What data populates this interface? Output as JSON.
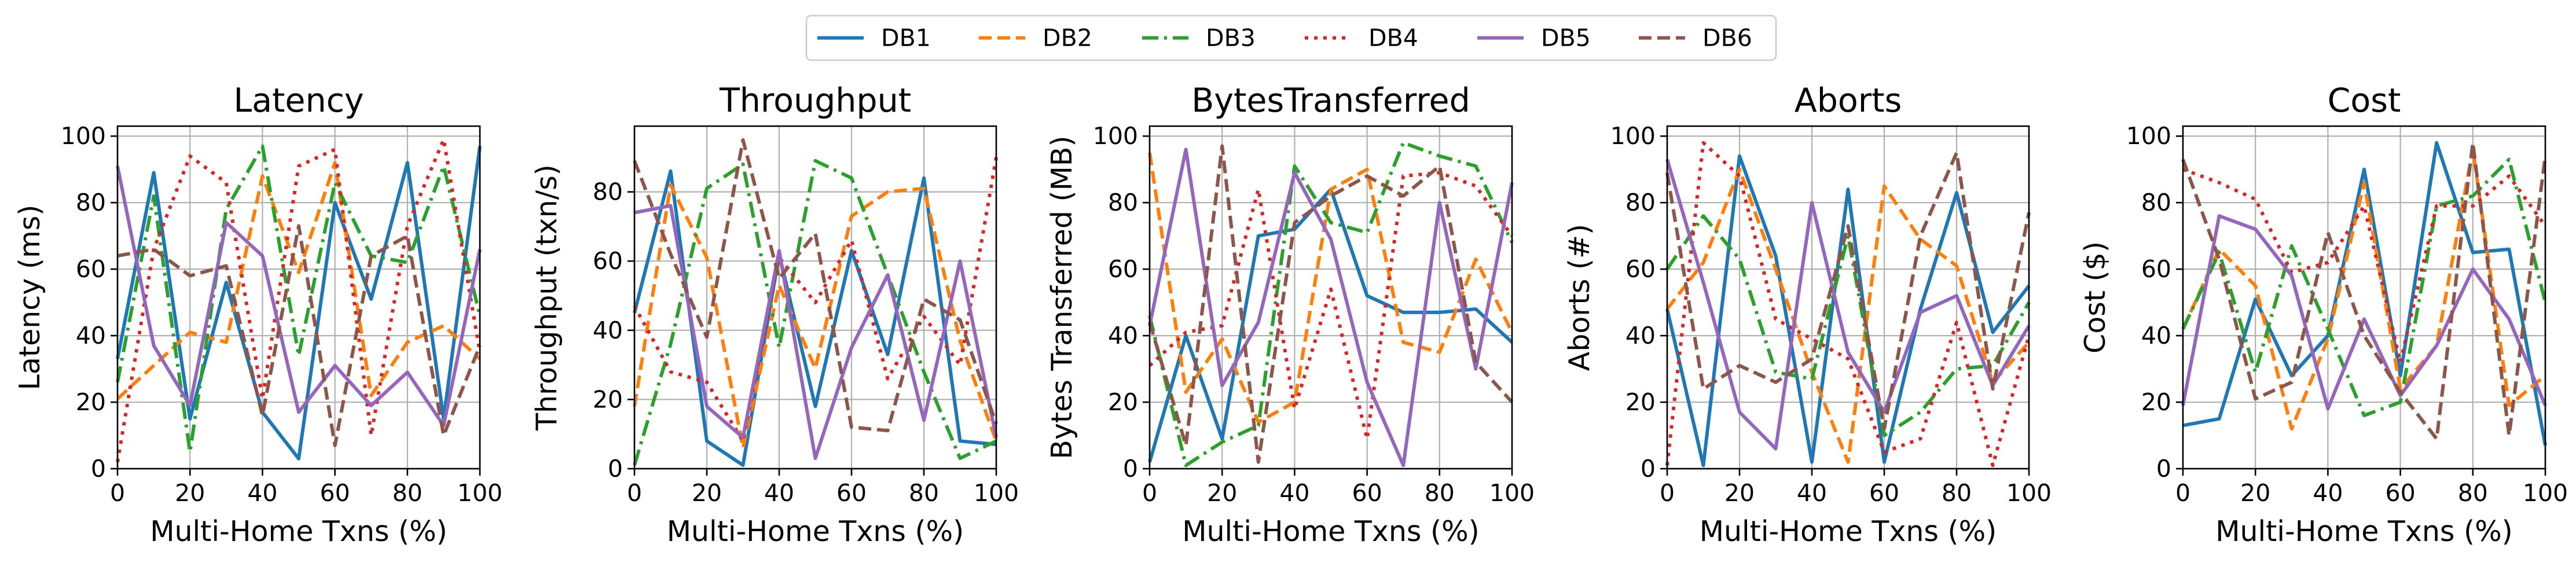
{
  "legend": {
    "entries": [
      {
        "name": "DB1",
        "color": "#1f77b4",
        "dash": "solid"
      },
      {
        "name": "DB2",
        "color": "#ff7f0e",
        "dash": "dashed"
      },
      {
        "name": "DB3",
        "color": "#2ca02c",
        "dash": "dashdot"
      },
      {
        "name": "DB4",
        "color": "#d62728",
        "dash": "dotted"
      },
      {
        "name": "DB5",
        "color": "#9467bd",
        "dash": "solid"
      },
      {
        "name": "DB6",
        "color": "#8c564b",
        "dash": "dashed"
      }
    ],
    "placement": "top-center"
  },
  "chart_data": [
    {
      "type": "line",
      "title": "Latency",
      "xlabel": "Multi-Home Txns (%)",
      "ylabel": "Latency (ms)",
      "x": [
        0,
        10,
        20,
        30,
        40,
        50,
        60,
        70,
        80,
        90,
        100
      ],
      "xlim": [
        0,
        100
      ],
      "ylim": [
        0,
        103
      ],
      "xticks": [
        0,
        20,
        40,
        60,
        80,
        100
      ],
      "yticks": [
        0,
        20,
        40,
        60,
        80,
        100
      ],
      "grid": true,
      "series": [
        {
          "name": "DB1",
          "values": [
            33,
            89,
            15,
            56,
            17,
            3,
            80,
            51,
            92,
            15,
            97
          ]
        },
        {
          "name": "DB2",
          "values": [
            21,
            31,
            41,
            38,
            88,
            59,
            92,
            22,
            38,
            43,
            33
          ]
        },
        {
          "name": "DB3",
          "values": [
            26,
            82,
            5,
            78,
            97,
            34,
            86,
            64,
            62,
            91,
            46
          ]
        },
        {
          "name": "DB4",
          "values": [
            2,
            66,
            94,
            86,
            21,
            91,
            96,
            10,
            73,
            99,
            35
          ]
        },
        {
          "name": "DB5",
          "values": [
            91,
            37,
            19,
            74,
            64,
            17,
            31,
            19,
            29,
            13,
            66
          ]
        },
        {
          "name": "DB6",
          "values": [
            64,
            66,
            58,
            61,
            16,
            73,
            7,
            64,
            70,
            10,
            37
          ]
        }
      ]
    },
    {
      "type": "line",
      "title": "Throughput",
      "xlabel": "Multi-Home Txns (%)",
      "ylabel": "Throughput (txn/s)",
      "x": [
        0,
        10,
        20,
        30,
        40,
        50,
        60,
        70,
        80,
        90,
        100
      ],
      "xlim": [
        0,
        100
      ],
      "ylim": [
        0,
        99
      ],
      "xticks": [
        0,
        20,
        40,
        60,
        80,
        100
      ],
      "yticks": [
        0,
        20,
        40,
        60,
        80
      ],
      "grid": true,
      "series": [
        {
          "name": "DB1",
          "values": [
            45,
            86,
            8,
            1,
            62,
            18,
            63,
            33,
            84,
            8,
            7
          ]
        },
        {
          "name": "DB2",
          "values": [
            18,
            82,
            61,
            6,
            53,
            29,
            73,
            80,
            81,
            37,
            8
          ]
        },
        {
          "name": "DB3",
          "values": [
            1,
            36,
            81,
            88,
            35,
            89,
            84,
            56,
            28,
            3,
            8
          ]
        },
        {
          "name": "DB4",
          "values": [
            47,
            28,
            25,
            8,
            61,
            48,
            66,
            26,
            44,
            30,
            90
          ]
        },
        {
          "name": "DB5",
          "values": [
            74,
            76,
            18,
            9,
            63,
            3,
            35,
            56,
            14,
            60,
            9
          ]
        },
        {
          "name": "DB6",
          "values": [
            89,
            62,
            38,
            95,
            55,
            68,
            12,
            11,
            49,
            43,
            13
          ]
        }
      ]
    },
    {
      "type": "line",
      "title": "BytesTransferred",
      "xlabel": "Multi-Home Txns (%)",
      "ylabel": "Bytes Transferred (MB)",
      "x": [
        0,
        10,
        20,
        30,
        40,
        50,
        60,
        70,
        80,
        90,
        100
      ],
      "xlim": [
        0,
        100
      ],
      "ylim": [
        0,
        103
      ],
      "xticks": [
        0,
        20,
        40,
        60,
        80,
        100
      ],
      "yticks": [
        0,
        20,
        40,
        60,
        80,
        100
      ],
      "grid": true,
      "series": [
        {
          "name": "DB1",
          "values": [
            2,
            40,
            9,
            70,
            72,
            84,
            52,
            47,
            47,
            48,
            38
          ]
        },
        {
          "name": "DB2",
          "values": [
            95,
            23,
            39,
            14,
            20,
            84,
            90,
            38,
            35,
            63,
            41
          ]
        },
        {
          "name": "DB3",
          "values": [
            46,
            1,
            8,
            13,
            91,
            74,
            71,
            98,
            94,
            91,
            68
          ]
        },
        {
          "name": "DB4",
          "values": [
            31,
            41,
            43,
            84,
            18,
            54,
            9,
            88,
            89,
            85,
            70
          ]
        },
        {
          "name": "DB5",
          "values": [
            43,
            96,
            25,
            44,
            89,
            69,
            26,
            1,
            80,
            30,
            86
          ]
        },
        {
          "name": "DB6",
          "values": [
            44,
            7,
            97,
            2,
            74,
            82,
            88,
            82,
            91,
            32,
            20
          ]
        }
      ]
    },
    {
      "type": "line",
      "title": "Aborts",
      "xlabel": "Multi-Home Txns (%)",
      "ylabel": "Aborts (#)",
      "x": [
        0,
        10,
        20,
        30,
        40,
        50,
        60,
        70,
        80,
        90,
        100
      ],
      "xlim": [
        0,
        100
      ],
      "ylim": [
        0,
        103
      ],
      "xticks": [
        0,
        20,
        40,
        60,
        80,
        100
      ],
      "yticks": [
        0,
        20,
        40,
        60,
        80,
        100
      ],
      "grid": true,
      "series": [
        {
          "name": "DB1",
          "values": [
            48,
            1,
            94,
            64,
            2,
            84,
            2,
            48,
            83,
            41,
            55
          ]
        },
        {
          "name": "DB2",
          "values": [
            48,
            62,
            90,
            60,
            29,
            2,
            85,
            69,
            61,
            26,
            38
          ]
        },
        {
          "name": "DB3",
          "values": [
            60,
            76,
            63,
            29,
            27,
            70,
            10,
            17,
            30,
            31,
            50
          ]
        },
        {
          "name": "DB4",
          "values": [
            1,
            98,
            88,
            45,
            39,
            33,
            5,
            9,
            44,
            1,
            40
          ]
        },
        {
          "name": "DB5",
          "values": [
            93,
            56,
            17,
            6,
            80,
            35,
            17,
            47,
            52,
            25,
            43
          ]
        },
        {
          "name": "DB6",
          "values": [
            89,
            24,
            31,
            26,
            33,
            73,
            12,
            70,
            95,
            24,
            77
          ]
        }
      ]
    },
    {
      "type": "line",
      "title": "Cost",
      "xlabel": "Multi-Home Txns (%)",
      "ylabel": "Cost ($)",
      "x": [
        0,
        10,
        20,
        30,
        40,
        50,
        60,
        70,
        80,
        90,
        100
      ],
      "xlim": [
        0,
        100
      ],
      "ylim": [
        0,
        103
      ],
      "xticks": [
        0,
        20,
        40,
        60,
        80,
        100
      ],
      "yticks": [
        0,
        20,
        40,
        60,
        80,
        100
      ],
      "grid": true,
      "series": [
        {
          "name": "DB1",
          "values": [
            13,
            15,
            51,
            28,
            40,
            90,
            28,
            98,
            65,
            66,
            7
          ]
        },
        {
          "name": "DB2",
          "values": [
            42,
            66,
            55,
            12,
            39,
            86,
            24,
            37,
            96,
            19,
            28
          ]
        },
        {
          "name": "DB3",
          "values": [
            42,
            65,
            29,
            67,
            42,
            16,
            20,
            79,
            82,
            93,
            50
          ]
        },
        {
          "name": "DB4",
          "values": [
            90,
            86,
            81,
            59,
            62,
            79,
            32,
            79,
            79,
            88,
            73
          ]
        },
        {
          "name": "DB5",
          "values": [
            19,
            76,
            72,
            58,
            18,
            45,
            22,
            37,
            60,
            45,
            19
          ]
        },
        {
          "name": "DB6",
          "values": [
            93,
            63,
            21,
            26,
            71,
            40,
            23,
            9,
            98,
            10,
            94
          ]
        }
      ]
    }
  ]
}
